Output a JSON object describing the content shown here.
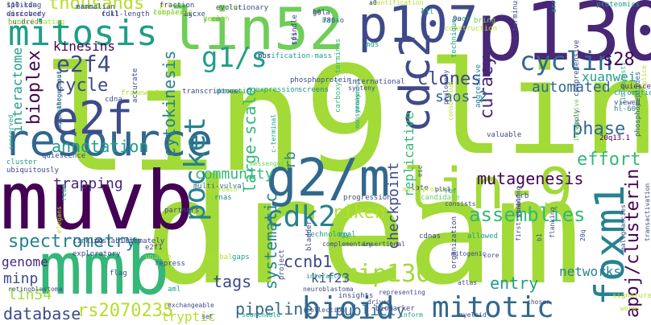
{
  "colors": {
    "background": "#ffffff",
    "viridis": {
      "dark_purple": "#440154",
      "purple": "#482777",
      "indigo": "#3e4a89",
      "blue": "#31688e",
      "teal_blue": "#26828e",
      "teal": "#1f9e89",
      "green": "#35b779",
      "light_green": "#6ece58",
      "yellow_green": "#a2da37",
      "lime": "#b5de2b",
      "yellow": "#fde725"
    }
  },
  "words": [
    {
      "text": "lin9",
      "color": "#a2da37"
    },
    {
      "text": "dream",
      "color": "#a2da37"
    },
    {
      "text": "linc",
      "color": "#a2da37"
    },
    {
      "text": "muvb",
      "color": "#440154"
    },
    {
      "text": "p130",
      "color": "#482777"
    },
    {
      "text": "mmb",
      "color": "#35b779"
    },
    {
      "text": "g2/m",
      "color": "#31688e"
    },
    {
      "text": "lin-9",
      "color": "#a2da37"
    },
    {
      "text": "resource",
      "color": "#31688e"
    },
    {
      "text": "p107",
      "color": "#3e4a89"
    },
    {
      "text": "lin52",
      "color": "#6ece58"
    },
    {
      "text": "mitosis",
      "color": "#1f9e89"
    },
    {
      "text": "cdc2",
      "color": "#3e4a89"
    },
    {
      "text": "e2f",
      "color": "#3e4a89"
    },
    {
      "text": "foxm1",
      "color": "#26828e"
    },
    {
      "text": "bioid",
      "color": "#31688e"
    },
    {
      "text": "mitotic",
      "color": "#31688e"
    },
    {
      "text": "cdk2",
      "color": "#26828e"
    },
    {
      "text": "pocket",
      "color": "#26828e"
    },
    {
      "text": "g1/s",
      "color": "#1f9e89"
    },
    {
      "text": "apoj/clusterin",
      "color": "#440154"
    },
    {
      "text": "mip130",
      "color": "#a2da37"
    },
    {
      "text": "e2f4",
      "color": "#3e4a89"
    },
    {
      "text": "cyclin",
      "color": "#31688e"
    },
    {
      "text": "thousands",
      "color": "#b5de2b"
    },
    {
      "text": "rs2070235",
      "color": "#b5de2b"
    },
    {
      "text": "database",
      "color": "#3e4a89"
    },
    {
      "text": "riken",
      "color": "#b5de2b"
    },
    {
      "text": "pipeline",
      "color": "#31688e"
    },
    {
      "text": "spectrometry",
      "color": "#26828e"
    },
    {
      "text": "assemblies",
      "color": "#35b779"
    },
    {
      "text": "cycle",
      "color": "#3e4a89"
    },
    {
      "text": "phase",
      "color": "#31688e"
    },
    {
      "text": "annotation",
      "color": "#1f9e89"
    },
    {
      "text": "effort",
      "color": "#35b779"
    },
    {
      "text": "bioplex",
      "color": "#440154"
    },
    {
      "text": "interactome",
      "color": "#1f9e89"
    },
    {
      "text": "cytokinesis",
      "color": "#26828e"
    },
    {
      "text": "community",
      "color": "#35b779"
    },
    {
      "text": "ccnb1",
      "color": "#3e4a89"
    },
    {
      "text": "large-scale",
      "color": "#35b779"
    },
    {
      "text": "systematic",
      "color": "#26828e"
    },
    {
      "text": "mutagenesis",
      "color": "#440154"
    },
    {
      "text": "tags",
      "color": "#3e4a89"
    },
    {
      "text": "checkpoint",
      "color": "#3e4a89"
    },
    {
      "text": "replicative",
      "color": "#35b779"
    },
    {
      "text": "clones",
      "color": "#3e4a89"
    },
    {
      "text": "automated",
      "color": "#31688e"
    },
    {
      "text": "curacy",
      "color": "#482777"
    },
    {
      "text": "s28",
      "color": "#440154"
    },
    {
      "text": "xuanwei",
      "color": "#1f9e89"
    },
    {
      "text": "saos-2",
      "color": "#31688e"
    },
    {
      "text": "entry",
      "color": "#1f9e89"
    },
    {
      "text": "publicly",
      "color": "#31688e"
    },
    {
      "text": "kinesins",
      "color": "#440154"
    },
    {
      "text": "trapping",
      "color": "#482777"
    },
    {
      "text": "genome",
      "color": "#482777"
    },
    {
      "text": "minp",
      "color": "#3e4a89"
    },
    {
      "text": "lin54",
      "color": "#a2da37"
    },
    {
      "text": "networks",
      "color": "#26828e"
    },
    {
      "text": "kif23",
      "color": "#3e4a89"
    },
    {
      "text": "tryptic",
      "color": "#b5de2b"
    },
    {
      "text": "rb",
      "color": "#26828e"
    },
    {
      "text": "errors",
      "color": "#6ece58"
    },
    {
      "text": "discovery",
      "color": "#482777"
    },
    {
      "text": "splicing",
      "color": "#3e4a89"
    },
    {
      "text": "cdk1",
      "color": "#3e4a89"
    },
    {
      "text": "mgc",
      "color": "#3e4a89"
    },
    {
      "text": "hela",
      "color": "#3e4a89"
    },
    {
      "text": "maps",
      "color": "#1f9e89"
    },
    {
      "text": "a2",
      "color": "#31688e"
    },
    {
      "text": "poor",
      "color": "#1f9e89"
    },
    {
      "text": "proteomics",
      "color": "#1f9e89"
    },
    {
      "text": "identification",
      "color": "#b5de2b"
    },
    {
      "text": "yeast",
      "color": "#1f9e89"
    },
    {
      "text": "aortic",
      "color": "#b5de2b"
    },
    {
      "text": "complexes",
      "color": "#6ece58"
    },
    {
      "text": "prb",
      "color": "#b5de2b"
    },
    {
      "text": "hundreds",
      "color": "#3e4a89"
    },
    {
      "text": "spermatogenesis",
      "color": "#1f9e89"
    },
    {
      "text": "purification-mass",
      "color": "#1f9e89"
    },
    {
      "text": "spindle",
      "color": "#3e4a89"
    },
    {
      "text": "mds",
      "color": "#1f9e89"
    },
    {
      "text": "construction",
      "color": "#b5de2b"
    },
    {
      "text": "technique",
      "color": "#1f9e89"
    },
    {
      "text": "c-terminus",
      "color": "#3e4a89"
    },
    {
      "text": "bring",
      "color": "#6ece58"
    },
    {
      "text": "arrest",
      "color": "#1f9e89"
    },
    {
      "text": "comprehensive",
      "color": "#3e4a89"
    },
    {
      "text": "splice",
      "color": "#b5de2b"
    },
    {
      "text": "phosphopeptides",
      "color": "#31688e"
    },
    {
      "text": "fibroblasts",
      "color": "#35b779"
    },
    {
      "text": "chromatids",
      "color": "#1f9e89"
    },
    {
      "text": "quiescent",
      "color": "#482777"
    },
    {
      "text": "viewed",
      "color": "#3e4a89"
    },
    {
      "text": "hl-60",
      "color": "#26828e"
    },
    {
      "text": "20q13.1",
      "color": "#440154"
    },
    {
      "text": "conserved",
      "color": "#1f9e89"
    },
    {
      "text": "transcriptome",
      "color": "#3e4a89"
    },
    {
      "text": "domestic",
      "color": "#1f9e89"
    },
    {
      "text": "coexpression",
      "color": "#1f9e89"
    },
    {
      "text": "framework",
      "color": "#b5de2b"
    },
    {
      "text": "cdna",
      "color": "#3e4a89"
    },
    {
      "text": "accurate",
      "color": "#3e4a89"
    },
    {
      "text": "phosphoprotein",
      "color": "#3e4a89"
    },
    {
      "text": "screens",
      "color": "#26828e"
    },
    {
      "text": "synteny",
      "color": "#3e4a89"
    },
    {
      "text": "carboxyl-terminus",
      "color": "#35b779"
    },
    {
      "text": "mrnas",
      "color": "#1f9e89"
    },
    {
      "text": "nonsynonymous",
      "color": "#1f9e89"
    },
    {
      "text": "international",
      "color": "#3e4a89"
    },
    {
      "text": "phylogeny",
      "color": "#3e4a89"
    },
    {
      "text": "consortium",
      "color": "#b5de2b"
    },
    {
      "text": "aggressive",
      "color": "#26828e"
    },
    {
      "text": "valuable",
      "color": "#3e4a89"
    },
    {
      "text": "apply",
      "color": "#3e4a89"
    },
    {
      "text": "integrative",
      "color": "#6ece58"
    },
    {
      "text": "quiescence",
      "color": "#3e4a89"
    },
    {
      "text": "cluster",
      "color": "#1f9e89"
    },
    {
      "text": "ubiquitously",
      "color": "#3e4a89"
    },
    {
      "text": "multi-vulval",
      "color": "#31688e"
    },
    {
      "text": "rnas",
      "color": "#26828e"
    },
    {
      "text": "c-terminal",
      "color": "#1f9e89"
    },
    {
      "text": "messenger",
      "color": "#6ece58"
    },
    {
      "text": "progression",
      "color": "#3e4a89"
    },
    {
      "text": "late",
      "color": "#3e4a89"
    },
    {
      "text": "candidate",
      "color": "#6ece58"
    },
    {
      "text": "consists",
      "color": "#3e4a89"
    },
    {
      "text": "esc",
      "color": "#3e4a89"
    },
    {
      "text": "read",
      "color": "#1f9e89"
    },
    {
      "text": "partners",
      "color": "#3e4a89"
    },
    {
      "text": "approach",
      "color": "#b5de2b"
    },
    {
      "text": "multiprotein",
      "color": "#b5de2b"
    },
    {
      "text": "plk1",
      "color": "#3e4a89"
    },
    {
      "text": "rbf",
      "color": "#1f9e89"
    },
    {
      "text": "crb",
      "color": "#3e4a89"
    },
    {
      "text": "elegans",
      "color": "#b5de2b"
    },
    {
      "text": "linking",
      "color": "#3e4a89"
    },
    {
      "text": "exploratory",
      "color": "#3e4a89"
    },
    {
      "text": "ultimately",
      "color": "#3e4a89"
    },
    {
      "text": "e2f1",
      "color": "#3e4a89"
    },
    {
      "text": "unable",
      "color": "#b5de2b"
    },
    {
      "text": "repress",
      "color": "#3e4a89"
    },
    {
      "text": "technology",
      "color": "#1f9e89"
    },
    {
      "text": "coal",
      "color": "#1f9e89"
    },
    {
      "text": "cdnas",
      "color": "#3e4a89"
    },
    {
      "text": "allowed",
      "color": "#1f9e89"
    },
    {
      "text": "mitogenic",
      "color": "#3e4a89"
    },
    {
      "text": "20q",
      "color": "#3e4a89"
    },
    {
      "text": "flag",
      "color": "#3e4a89"
    },
    {
      "text": "instability",
      "color": "#3e4a89"
    },
    {
      "text": "global",
      "color": "#b5de2b"
    },
    {
      "text": "gaps",
      "color": "#1f9e89"
    },
    {
      "text": "bladder",
      "color": "#3e4a89"
    },
    {
      "text": "interactors",
      "color": "#1f9e89"
    },
    {
      "text": "core",
      "color": "#3e4a89"
    },
    {
      "text": "enabling",
      "color": "#3e4a89"
    },
    {
      "text": "transactivation",
      "color": "#3e4a89"
    },
    {
      "text": "retinoblastoma",
      "color": "#3e4a89"
    },
    {
      "text": "aml",
      "color": "#1f9e89"
    },
    {
      "text": "project",
      "color": "#3e4a89"
    },
    {
      "text": "insights",
      "color": "#3e4a89"
    },
    {
      "text": "organization",
      "color": "#3e4a89"
    },
    {
      "text": "collection",
      "color": "#3e4a89"
    },
    {
      "text": "driven",
      "color": "#3e4a89"
    },
    {
      "text": "set",
      "color": "#3e4a89"
    },
    {
      "text": "exchangeable",
      "color": "#3e4a89"
    },
    {
      "text": "biomarker",
      "color": "#3e4a89"
    },
    {
      "text": "inform",
      "color": "#1f9e89"
    },
    {
      "text": "myeloid",
      "color": "#3e4a89"
    },
    {
      "text": "representing",
      "color": "#3e4a89"
    },
    {
      "text": "signature",
      "color": "#b5de2b"
    },
    {
      "text": "neuroblastoma",
      "color": "#3e4a89"
    },
    {
      "text": "complementary",
      "color": "#3e4a89"
    },
    {
      "text": "insertional",
      "color": "#3e4a89"
    },
    {
      "text": "searchable",
      "color": "#1f9e89"
    },
    {
      "text": "atlas",
      "color": "#3e4a89"
    },
    {
      "text": "flanking",
      "color": "#3e4a89"
    },
    {
      "text": "b1",
      "color": "#3e4a89"
    },
    {
      "text": "first-strand",
      "color": "#3e4a89"
    },
    {
      "text": "malignancies",
      "color": "#3e4a89"
    },
    {
      "text": "chosen",
      "color": "#3e4a89"
    },
    {
      "text": "worms",
      "color": "#b5de2b"
    },
    {
      "text": "mammalian",
      "color": "#3e4a89"
    },
    {
      "text": "enriched",
      "color": "#3e4a89"
    },
    {
      "text": "110-kda",
      "color": "#3e4a89"
    },
    {
      "text": "full-length",
      "color": "#3e4a89"
    },
    {
      "text": "lxcxe",
      "color": "#3e4a89"
    },
    {
      "text": "g0",
      "color": "#3e4a89"
    },
    {
      "text": "786-o",
      "color": "#3e4a89"
    },
    {
      "text": "ljl",
      "color": "#1f9e89"
    },
    {
      "text": "9a",
      "color": "#3e4a89"
    },
    {
      "text": "m1",
      "color": "#3e4a89"
    },
    {
      "text": "a0",
      "color": "#3e4a89"
    },
    {
      "text": "health",
      "color": "#b5de2b"
    },
    {
      "text": "evolutionary",
      "color": "#3e4a89"
    },
    {
      "text": "libraries",
      "color": "#b5de2b"
    },
    {
      "text": "fraction",
      "color": "#3e4a89"
    },
    {
      "text": "proliferating",
      "color": "#b5de2b"
    },
    {
      "text": "high-throughput",
      "color": "#3e4a89"
    },
    {
      "text": "mbs",
      "color": "#3e4a89"
    },
    {
      "text": "tfs",
      "color": "#3e4a89"
    }
  ]
}
